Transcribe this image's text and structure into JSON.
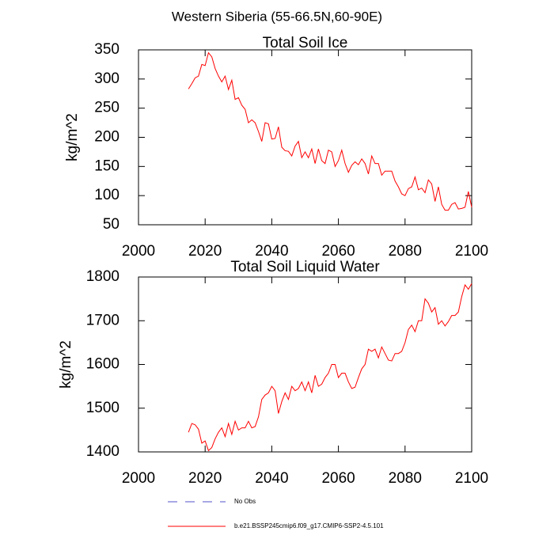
{
  "title": "Western Siberia (55-66.5N,60-90E)",
  "legend": [
    {
      "name": "No Obs",
      "color": "#5050c8",
      "dashed": true
    },
    {
      "name": "b.e21.BSSP245cmip6.f09_g17.CMIP6-SSP2-4.5.101",
      "color": "#ff0000",
      "dashed": false
    }
  ],
  "chart_data": [
    {
      "type": "line",
      "title": "Total Soil Ice",
      "ylabel": "kg/m^2",
      "x": [
        2015,
        2016,
        2017,
        2018,
        2019,
        2020,
        2021,
        2022,
        2023,
        2024,
        2025,
        2026,
        2027,
        2028,
        2029,
        2030,
        2031,
        2032,
        2033,
        2034,
        2035,
        2036,
        2037,
        2038,
        2039,
        2040,
        2041,
        2042,
        2043,
        2044,
        2045,
        2046,
        2047,
        2048,
        2049,
        2050,
        2051,
        2052,
        2053,
        2054,
        2055,
        2056,
        2057,
        2058,
        2059,
        2060,
        2061,
        2062,
        2063,
        2064,
        2065,
        2066,
        2067,
        2068,
        2069,
        2070,
        2071,
        2072,
        2073,
        2074,
        2075,
        2076,
        2077,
        2078,
        2079,
        2080,
        2081,
        2082,
        2083,
        2084,
        2085,
        2086,
        2087,
        2088,
        2089,
        2090,
        2091,
        2092,
        2093,
        2094,
        2095,
        2096,
        2097,
        2098,
        2099,
        2100
      ],
      "series": [
        {
          "color": "#ff0000",
          "values": [
            283,
            292,
            302,
            305,
            325,
            323,
            345,
            338,
            318,
            305,
            295,
            305,
            282,
            298,
            265,
            268,
            255,
            248,
            225,
            230,
            225,
            210,
            193,
            225,
            223,
            197,
            198,
            218,
            183,
            177,
            176,
            168,
            185,
            193,
            165,
            175,
            165,
            180,
            155,
            180,
            160,
            155,
            178,
            175,
            150,
            160,
            178,
            155,
            140,
            152,
            158,
            153,
            163,
            155,
            137,
            168,
            155,
            155,
            135,
            142,
            142,
            142,
            125,
            115,
            103,
            100,
            112,
            115,
            132,
            110,
            113,
            105,
            127,
            120,
            90,
            115,
            85,
            75,
            75,
            85,
            88,
            77,
            78,
            80,
            107,
            80
          ]
        }
      ],
      "xlim": [
        2000,
        2100
      ],
      "xticks": [
        2000,
        2020,
        2040,
        2060,
        2080,
        2100
      ],
      "ylim": [
        50,
        350
      ],
      "yticks": [
        50,
        100,
        150,
        200,
        250,
        300,
        350
      ]
    },
    {
      "type": "line",
      "title": "Total Soil Liquid Water",
      "ylabel": "kg/m^2",
      "x": [
        2015,
        2016,
        2017,
        2018,
        2019,
        2020,
        2021,
        2022,
        2023,
        2024,
        2025,
        2026,
        2027,
        2028,
        2029,
        2030,
        2031,
        2032,
        2033,
        2034,
        2035,
        2036,
        2037,
        2038,
        2039,
        2040,
        2041,
        2042,
        2043,
        2044,
        2045,
        2046,
        2047,
        2048,
        2049,
        2050,
        2051,
        2052,
        2053,
        2054,
        2055,
        2056,
        2057,
        2058,
        2059,
        2060,
        2061,
        2062,
        2063,
        2064,
        2065,
        2066,
        2067,
        2068,
        2069,
        2070,
        2071,
        2072,
        2073,
        2074,
        2075,
        2076,
        2077,
        2078,
        2079,
        2080,
        2081,
        2082,
        2083,
        2084,
        2085,
        2086,
        2087,
        2088,
        2089,
        2090,
        2091,
        2092,
        2093,
        2094,
        2095,
        2096,
        2097,
        2098,
        2099,
        2100
      ],
      "series": [
        {
          "color": "#ff0000",
          "values": [
            1445,
            1465,
            1462,
            1452,
            1420,
            1425,
            1403,
            1410,
            1430,
            1445,
            1455,
            1435,
            1465,
            1440,
            1470,
            1450,
            1455,
            1455,
            1470,
            1455,
            1458,
            1480,
            1520,
            1530,
            1535,
            1550,
            1540,
            1488,
            1515,
            1535,
            1520,
            1550,
            1540,
            1545,
            1560,
            1540,
            1560,
            1535,
            1575,
            1550,
            1555,
            1570,
            1580,
            1600,
            1600,
            1570,
            1580,
            1580,
            1560,
            1545,
            1548,
            1570,
            1590,
            1600,
            1635,
            1630,
            1635,
            1615,
            1640,
            1625,
            1610,
            1608,
            1625,
            1625,
            1630,
            1650,
            1680,
            1690,
            1675,
            1700,
            1700,
            1750,
            1740,
            1720,
            1730,
            1692,
            1700,
            1688,
            1698,
            1712,
            1712,
            1720,
            1755,
            1782,
            1772,
            1785
          ]
        }
      ],
      "xlim": [
        2000,
        2100
      ],
      "xticks": [
        2000,
        2020,
        2040,
        2060,
        2080,
        2100
      ],
      "ylim": [
        1400,
        1800
      ],
      "yticks": [
        1400,
        1500,
        1600,
        1700,
        1800
      ]
    }
  ]
}
